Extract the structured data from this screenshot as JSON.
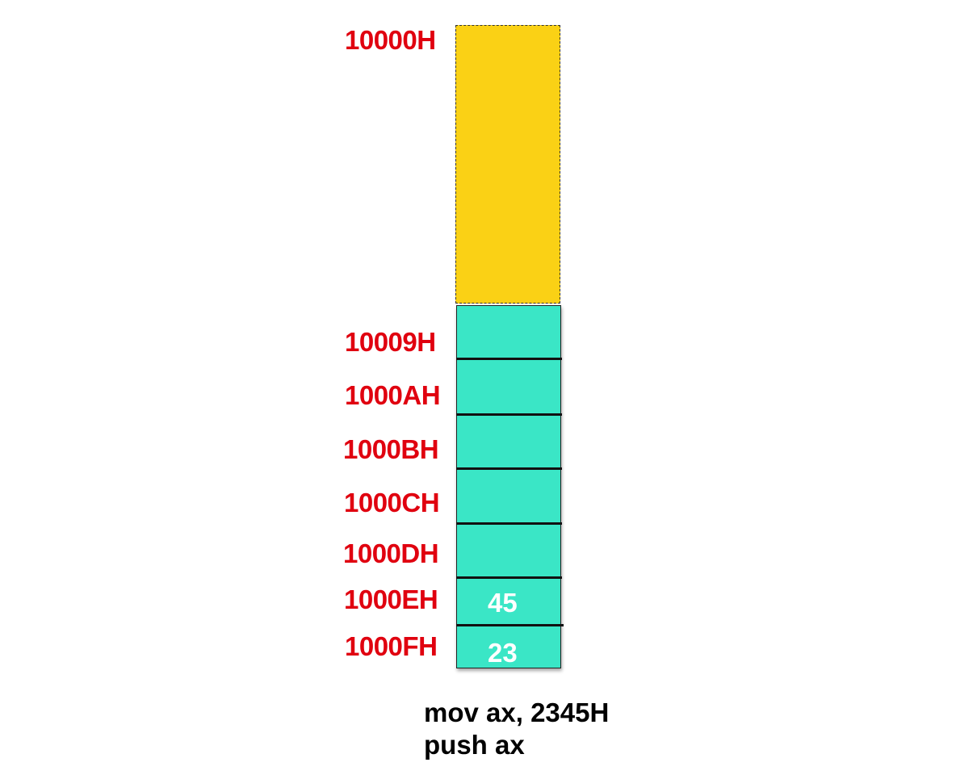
{
  "colors": {
    "address_label": "#e0000f",
    "unused_fill": "#fad115",
    "stack_fill": "#3ae6c6",
    "cell_text": "#ffffff",
    "code_text": "#000000"
  },
  "address_labels": [
    "10000H",
    "10009H",
    "1000AH",
    "1000BH",
    "1000CH",
    "1000DH",
    "1000EH",
    "1000FH"
  ],
  "cell_values": [
    "45",
    "23"
  ],
  "code": [
    "mov ax, 2345H",
    "push ax"
  ]
}
